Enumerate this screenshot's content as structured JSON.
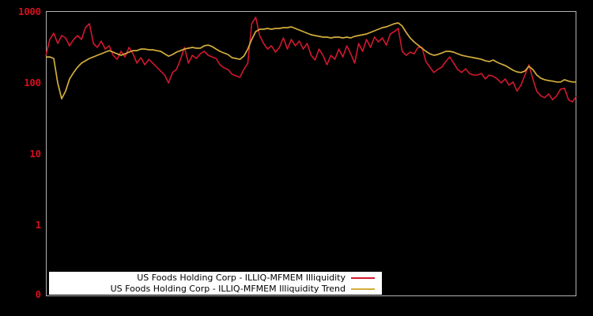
{
  "window": {
    "background": "#000000"
  },
  "chart_data": {
    "type": "line",
    "title": "",
    "xlabel": "",
    "ylabel": "",
    "y_scale": "log",
    "ylim": [
      0.1,
      1000
    ],
    "grid": false,
    "legend_position": "bottom-center",
    "plot_border_color": "#b2b2b2",
    "tick_label_color": "#dd0e1c",
    "y_ticks": [
      {
        "label": "1000",
        "value": 1000
      },
      {
        "label": "100",
        "value": 100
      },
      {
        "label": "10",
        "value": 10
      },
      {
        "label": "1",
        "value": 1
      },
      {
        "label": "0",
        "value": 0.1
      }
    ],
    "series": [
      {
        "name": "US Foods Holding Corp - ILLIQ-MFMEM Illiquidity",
        "color": "#d2182f",
        "stroke_width": 1.6,
        "values": [
          245,
          409,
          501,
          359,
          464,
          430,
          333,
          409,
          464,
          409,
          599,
          681,
          359,
          316,
          388,
          300,
          333,
          245,
          215,
          278,
          232,
          316,
          257,
          190,
          227,
          180,
          215,
          190,
          167,
          147,
          129,
          100,
          140,
          155,
          215,
          316,
          190,
          245,
          221,
          257,
          278,
          245,
          232,
          221,
          180,
          163,
          155,
          133,
          126,
          120,
          155,
          190,
          681,
          840,
          464,
          359,
          300,
          333,
          271,
          316,
          430,
          300,
          409,
          333,
          388,
          300,
          359,
          245,
          210,
          300,
          245,
          180,
          245,
          215,
          300,
          232,
          333,
          257,
          190,
          359,
          278,
          409,
          316,
          441,
          378,
          430,
          341,
          489,
          527,
          584,
          278,
          245,
          271,
          257,
          316,
          316,
          200,
          167,
          140,
          155,
          167,
          200,
          232,
          190,
          155,
          140,
          158,
          136,
          129,
          129,
          136,
          114,
          129,
          124,
          114,
          100,
          114,
          93,
          103,
          77,
          93,
          129,
          180,
          114,
          76,
          66,
          62,
          70,
          58,
          66,
          82,
          84,
          58,
          54,
          65
        ]
      },
      {
        "name": "US Foods Holding Corp - ILLIQ-MFMEM Illiquidity Trend",
        "color": "#d3ae3b",
        "stroke_width": 1.7,
        "values": [
          232,
          232,
          221,
          100,
          60,
          77,
          114,
          140,
          167,
          190,
          205,
          221,
          232,
          245,
          257,
          271,
          285,
          271,
          257,
          245,
          257,
          271,
          285,
          285,
          300,
          300,
          293,
          293,
          285,
          278,
          257,
          238,
          251,
          271,
          285,
          300,
          308,
          316,
          308,
          308,
          333,
          341,
          325,
          300,
          278,
          264,
          251,
          227,
          221,
          215,
          238,
          300,
          409,
          527,
          570,
          570,
          584,
          570,
          584,
          584,
          599,
          599,
          615,
          584,
          555,
          527,
          501,
          476,
          464,
          452,
          441,
          441,
          430,
          441,
          441,
          430,
          441,
          430,
          452,
          464,
          476,
          489,
          514,
          541,
          570,
          599,
          615,
          647,
          681,
          699,
          631,
          514,
          430,
          378,
          341,
          308,
          278,
          257,
          245,
          251,
          264,
          278,
          278,
          271,
          257,
          245,
          238,
          232,
          227,
          221,
          215,
          205,
          200,
          210,
          195,
          185,
          176,
          163,
          151,
          143,
          140,
          147,
          171,
          155,
          129,
          117,
          111,
          108,
          106,
          103,
          103,
          111,
          106,
          103,
          103
        ]
      }
    ]
  },
  "legend": {
    "background": "#ffffff",
    "text_color": "#000000",
    "items": [
      {
        "label": "US Foods Holding Corp - ILLIQ-MFMEM Illiquidity",
        "color": "#d2182f"
      },
      {
        "label": "US Foods Holding Corp - ILLIQ-MFMEM Illiquidity Trend",
        "color": "#d3ae3b"
      }
    ]
  }
}
